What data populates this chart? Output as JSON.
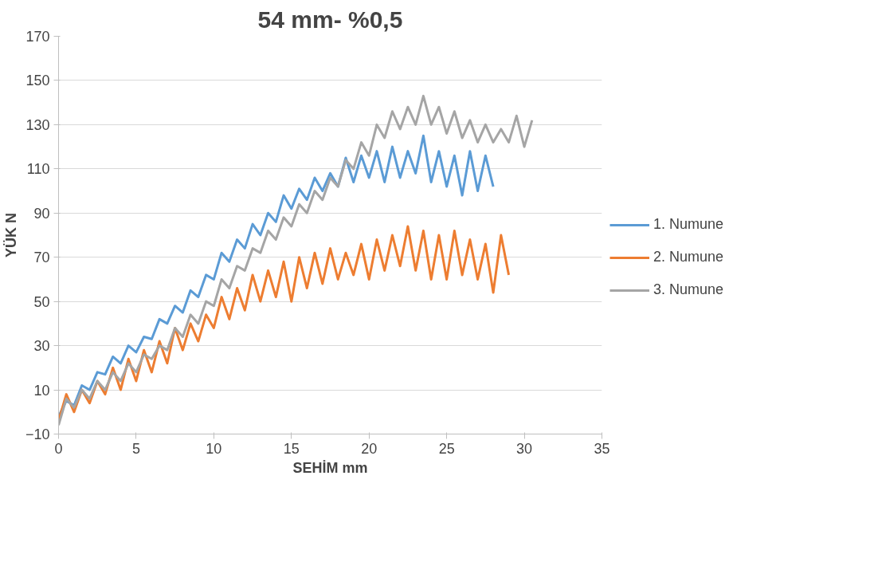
{
  "chart_data": {
    "type": "line",
    "title": "54 mm- %0,5",
    "xlabel": "SEHİM mm",
    "ylabel": "YÜK N",
    "xlim": [
      0,
      35
    ],
    "xticks": [
      0,
      5,
      10,
      15,
      20,
      25,
      30,
      35
    ],
    "ylim": [
      -10,
      170
    ],
    "yticks": [
      -10,
      10,
      30,
      50,
      70,
      90,
      110,
      130,
      150,
      170
    ],
    "grid": "y",
    "legend": "right",
    "marker": "none",
    "line_style": "solid",
    "series": [
      {
        "name": "1. Numune",
        "color": "#5b9bd5",
        "x": [
          0,
          0.5,
          1,
          1.5,
          2,
          2.5,
          3,
          3.5,
          4,
          4.5,
          5,
          5.5,
          6,
          6.5,
          7,
          7.5,
          8,
          8.5,
          9,
          9.5,
          10,
          10.5,
          11,
          11.5,
          12,
          12.5,
          13,
          13.5,
          14,
          14.5,
          15,
          15.5,
          16,
          16.5,
          17,
          17.5,
          18,
          18.5,
          19,
          19.5,
          20,
          20.5,
          21,
          21.5,
          22,
          22.5,
          23,
          23.5,
          24,
          24.5,
          25,
          25.5,
          26,
          26.5,
          27,
          27.5,
          28
        ],
        "values": [
          -2,
          5,
          3,
          12,
          10,
          18,
          17,
          25,
          22,
          30,
          27,
          34,
          33,
          42,
          40,
          48,
          45,
          55,
          52,
          62,
          60,
          72,
          68,
          78,
          74,
          85,
          80,
          90,
          86,
          98,
          92,
          101,
          96,
          106,
          100,
          108,
          102,
          115,
          104,
          116,
          106,
          118,
          104,
          120,
          106,
          118,
          108,
          125,
          104,
          118,
          102,
          116,
          98,
          118,
          100,
          116,
          102
        ]
      },
      {
        "name": "2. Numune",
        "color": "#ed7d31",
        "x": [
          0,
          0.5,
          1,
          1.5,
          2,
          2.5,
          3,
          3.5,
          4,
          4.5,
          5,
          5.5,
          6,
          6.5,
          7,
          7.5,
          8,
          8.5,
          9,
          9.5,
          10,
          10.5,
          11,
          11.5,
          12,
          12.5,
          13,
          13.5,
          14,
          14.5,
          15,
          15.5,
          16,
          16.5,
          17,
          17.5,
          18,
          18.5,
          19,
          19.5,
          20,
          20.5,
          21,
          21.5,
          22,
          22.5,
          23,
          23.5,
          24,
          24.5,
          25,
          25.5,
          26,
          26.5,
          27,
          27.5,
          28,
          28.5,
          29
        ],
        "values": [
          -4,
          8,
          0,
          10,
          4,
          14,
          8,
          20,
          10,
          24,
          14,
          28,
          18,
          32,
          22,
          38,
          28,
          40,
          32,
          44,
          38,
          52,
          42,
          56,
          46,
          62,
          50,
          64,
          52,
          68,
          50,
          70,
          56,
          72,
          58,
          74,
          60,
          72,
          62,
          76,
          60,
          78,
          64,
          80,
          66,
          84,
          64,
          82,
          60,
          80,
          60,
          82,
          62,
          78,
          60,
          76,
          54,
          80,
          62
        ]
      },
      {
        "name": "3. Numune",
        "color": "#a5a5a5",
        "x": [
          0,
          0.5,
          1,
          1.5,
          2,
          2.5,
          3,
          3.5,
          4,
          4.5,
          5,
          5.5,
          6,
          6.5,
          7,
          7.5,
          8,
          8.5,
          9,
          9.5,
          10,
          10.5,
          11,
          11.5,
          12,
          12.5,
          13,
          13.5,
          14,
          14.5,
          15,
          15.5,
          16,
          16.5,
          17,
          17.5,
          18,
          18.5,
          19,
          19.5,
          20,
          20.5,
          21,
          21.5,
          22,
          22.5,
          23,
          23.5,
          24,
          24.5,
          25,
          25.5,
          26,
          26.5,
          27,
          27.5,
          28,
          28.5,
          29,
          29.5,
          30,
          30.5
        ],
        "values": [
          -6,
          6,
          2,
          10,
          6,
          14,
          10,
          18,
          14,
          22,
          18,
          26,
          24,
          30,
          28,
          38,
          34,
          44,
          40,
          50,
          48,
          60,
          56,
          66,
          64,
          74,
          72,
          82,
          78,
          88,
          84,
          94,
          90,
          100,
          96,
          106,
          102,
          114,
          110,
          122,
          116,
          130,
          124,
          136,
          128,
          138,
          130,
          143,
          130,
          138,
          126,
          136,
          124,
          132,
          122,
          130,
          122,
          128,
          122,
          134,
          120,
          132
        ]
      }
    ]
  }
}
